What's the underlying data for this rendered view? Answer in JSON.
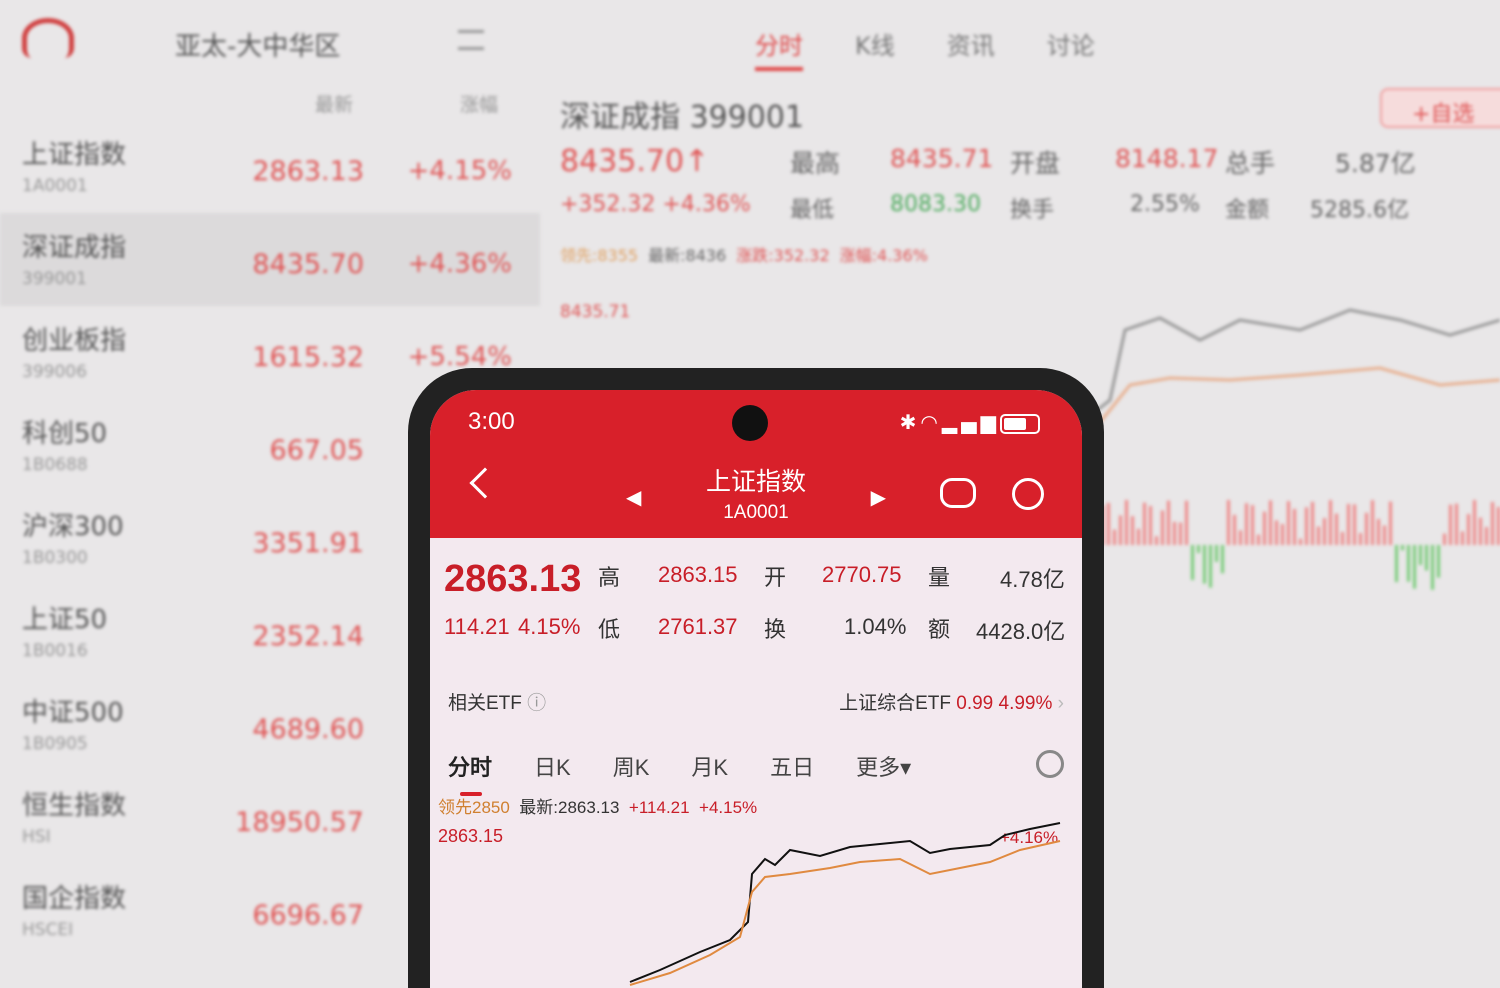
{
  "monitor": {
    "region": "亚太-大中华区",
    "tabs": [
      "分时",
      "K线",
      "资讯",
      "讨论"
    ],
    "col_latest": "最新",
    "col_change": "涨幅",
    "list": [
      {
        "name": "上证指数",
        "code": "1A0001",
        "price": "2863.13",
        "change": "+4.15%"
      },
      {
        "name": "深证成指",
        "code": "399001",
        "price": "8435.70",
        "change": "+4.36%"
      },
      {
        "name": "创业板指",
        "code": "399006",
        "price": "1615.32",
        "change": "+5.54%"
      },
      {
        "name": "科创50",
        "code": "1B0688",
        "price": "667.05",
        "change": ""
      },
      {
        "name": "沪深300",
        "code": "1B0300",
        "price": "3351.91",
        "change": ""
      },
      {
        "name": "上证50",
        "code": "1B0016",
        "price": "2352.14",
        "change": ""
      },
      {
        "name": "中证500",
        "code": "1B0905",
        "price": "4689.60",
        "change": ""
      },
      {
        "name": "恒生指数",
        "code": "HSI",
        "price": "18950.57",
        "change": ""
      },
      {
        "name": "国企指数",
        "code": "HSCEI",
        "price": "6696.67",
        "change": ""
      }
    ],
    "detail": {
      "title": "深证成指 399001",
      "price": "8435.70",
      "arrow": "↑",
      "change": "+352.32",
      "pct": "+4.36%",
      "high_label": "最高",
      "high": "8435.71",
      "open_label": "开盘",
      "open": "8148.17",
      "vol_label": "总手",
      "vol": "5.87亿",
      "low_label": "最低",
      "low": "8083.30",
      "turn_label": "换手",
      "turn": "2.55%",
      "amt_label": "金额",
      "amt": "5285.6亿",
      "lead": "领先:8355",
      "latest": "最新:8436",
      "chg": "涨跌:352.32",
      "chgpct": "涨幅:4.36%",
      "chart_high": "8435.71",
      "fav": "+自选"
    }
  },
  "phone": {
    "time": "3:00",
    "title": "上证指数",
    "code": "1A0001",
    "price": "2863.13",
    "change": "114.21",
    "pct": "4.15%",
    "high_label": "高",
    "high": "2863.15",
    "open_label": "开",
    "open": "2770.75",
    "vol_label": "量",
    "vol": "4.78亿",
    "low_label": "低",
    "low": "2761.37",
    "turn_label": "换",
    "turn": "1.04%",
    "amt_label": "额",
    "amt": "4428.0亿",
    "etf_label": "相关ETF",
    "etf_name": "上证综合ETF",
    "etf_price": "0.99",
    "etf_pct": "4.99%",
    "tabs": [
      "分时",
      "日K",
      "周K",
      "月K",
      "五日",
      "更多▾"
    ],
    "lead": "领先2850",
    "latest": "最新:2863.13",
    "chg": "+114.21",
    "chgpct": "+4.15%",
    "chart_high": "2863.15",
    "end_pct": "+4.16%"
  },
  "colors": {
    "red": "#d8202a",
    "green": "#4caa5c",
    "lead_line": "#e08a40"
  }
}
